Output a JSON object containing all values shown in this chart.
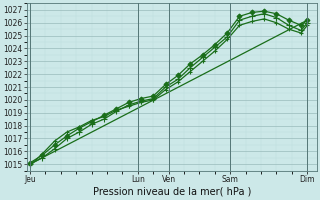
{
  "xlabel": "Pression niveau de la mer( hPa )",
  "bg_color": "#cce8e8",
  "plot_bg_color": "#cce8e8",
  "grid_major_color": "#99bbbb",
  "grid_minor_color": "#bbdddd",
  "line_color": "#1a6e1a",
  "ylim": [
    1014.5,
    1027.5
  ],
  "yticks": [
    1015,
    1016,
    1017,
    1018,
    1019,
    1020,
    1021,
    1022,
    1023,
    1024,
    1025,
    1026,
    1027
  ],
  "xlim": [
    -0.1,
    9.3
  ],
  "xtick_positions": [
    0.0,
    3.5,
    4.5,
    6.5,
    9.0
  ],
  "xtick_labels": [
    "Jeu",
    "Lun",
    "Ven",
    "Sam",
    "Dim"
  ],
  "vline_positions": [
    0.0,
    3.5,
    4.5,
    6.5,
    9.0
  ],
  "series": [
    {
      "x": [
        0.0,
        0.4,
        0.8,
        1.2,
        1.6,
        2.0,
        2.4,
        2.8,
        3.2,
        3.6,
        4.0,
        4.4,
        4.8,
        5.2,
        5.6,
        6.0,
        6.4,
        6.8,
        7.2,
        7.6,
        8.0,
        8.4,
        8.8,
        9.0
      ],
      "y": [
        1015.1,
        1015.7,
        1016.5,
        1017.2,
        1017.8,
        1018.3,
        1018.8,
        1019.3,
        1019.8,
        1020.1,
        1020.3,
        1021.2,
        1021.9,
        1022.8,
        1023.5,
        1024.3,
        1025.2,
        1026.5,
        1026.8,
        1026.9,
        1026.7,
        1026.2,
        1025.8,
        1026.2
      ],
      "marker": "D",
      "ms": 2.5,
      "lw": 0.9
    },
    {
      "x": [
        0.0,
        0.4,
        0.8,
        1.2,
        1.6,
        2.0,
        2.4,
        2.8,
        3.2,
        3.6,
        4.0,
        4.4,
        4.8,
        5.2,
        5.6,
        6.0,
        6.4,
        6.8,
        7.2,
        7.6,
        8.0,
        8.4,
        8.8,
        9.0
      ],
      "y": [
        1015.0,
        1015.5,
        1016.2,
        1017.0,
        1017.5,
        1018.1,
        1018.5,
        1019.1,
        1019.6,
        1019.9,
        1020.1,
        1021.0,
        1021.6,
        1022.5,
        1023.3,
        1024.1,
        1024.9,
        1026.2,
        1026.5,
        1026.7,
        1026.4,
        1025.8,
        1025.4,
        1026.0
      ],
      "marker": "+",
      "ms": 4.0,
      "lw": 0.9
    },
    {
      "x": [
        0.0,
        9.0
      ],
      "y": [
        1015.0,
        1026.2
      ],
      "marker": null,
      "ms": 0,
      "lw": 0.9
    },
    {
      "x": [
        0.0,
        0.4,
        0.8,
        1.2,
        1.6,
        2.0,
        2.4,
        2.8,
        3.2,
        3.6,
        4.0,
        4.4,
        4.8,
        5.2,
        5.6,
        6.0,
        6.4,
        6.8,
        7.2,
        7.6,
        8.0,
        8.4,
        8.8,
        9.0
      ],
      "y": [
        1014.9,
        1015.8,
        1016.8,
        1017.5,
        1017.9,
        1018.4,
        1018.7,
        1019.2,
        1019.5,
        1019.8,
        1020.0,
        1020.8,
        1021.4,
        1022.2,
        1023.0,
        1023.8,
        1024.7,
        1025.8,
        1026.1,
        1026.3,
        1026.0,
        1025.5,
        1025.2,
        1025.8
      ],
      "marker": "+",
      "ms": 3.5,
      "lw": 0.9
    }
  ],
  "tick_fontsize": 5.5,
  "label_fontsize": 7
}
